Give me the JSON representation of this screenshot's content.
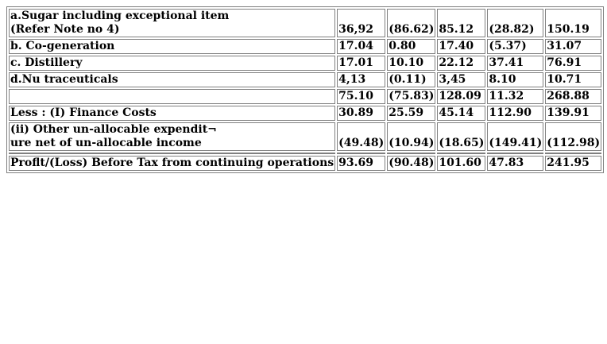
{
  "rows": [
    {
      "label_lines": [
        "a.Sugar including exceptional item",
        "(Refer Note no 4)"
      ],
      "values": [
        "36,92",
        "(86.62)",
        "85.12",
        "(28.82)",
        "150.19"
      ]
    },
    {
      "label_lines": [
        "b. Co-generation"
      ],
      "values": [
        "17.04",
        "0.80",
        "17.40",
        "(5.37)",
        "31.07"
      ]
    },
    {
      "label_lines": [
        "c. Distillery"
      ],
      "values": [
        "17.01",
        "10.10",
        "22.12",
        "37.41",
        "76.91"
      ]
    },
    {
      "label_lines": [
        "d.Nu traceuticals"
      ],
      "values": [
        "4,13",
        "(0.11)",
        "3,45",
        "8.10",
        "10.71"
      ]
    },
    {
      "label_lines": [
        ""
      ],
      "values": [
        "75.10",
        "(75.83)",
        "128.09",
        "11.32",
        "268.88"
      ]
    },
    {
      "label_lines": [
        "Less : (I) Finance Costs"
      ],
      "values": [
        "30.89",
        "25.59",
        "45.14",
        "112.90",
        "139.91"
      ]
    },
    {
      "label_lines": [
        "(ii) Other un-allocable expendit¬",
        "ure net of un-allocable income"
      ],
      "values": [
        "(49.48)",
        "(10.94)",
        "(18.65)",
        "(149.41)",
        "(112.98)"
      ]
    },
    {
      "label_lines": [
        "Proflt/(Loss) Before Tax from continuing operations"
      ],
      "values": [
        "93.69",
        "(90.48)",
        "101.60",
        "47.83",
        "241.95"
      ]
    }
  ]
}
